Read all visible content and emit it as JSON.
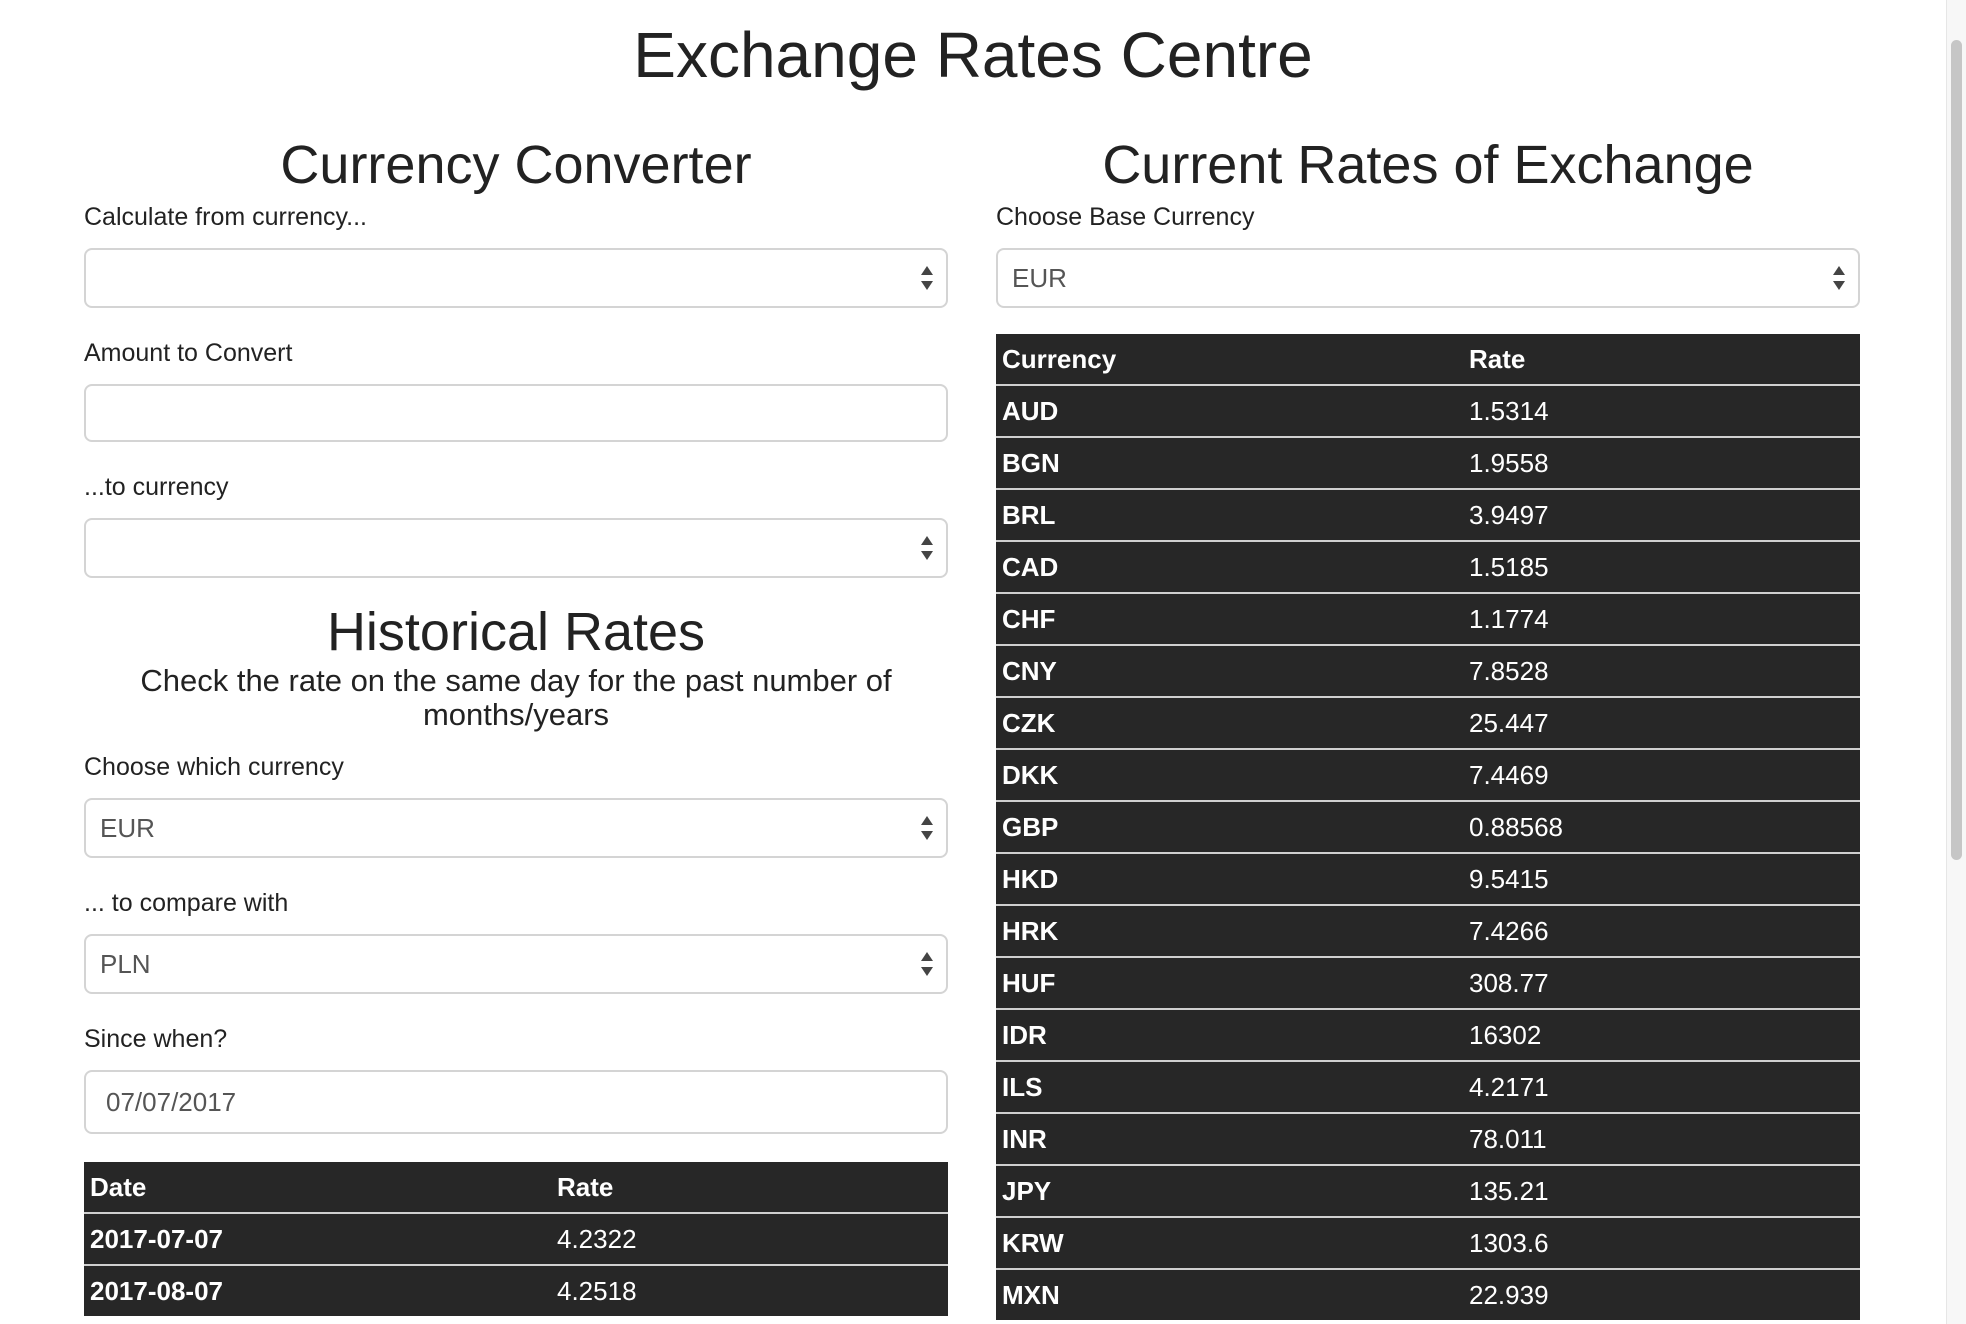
{
  "page": {
    "title": "Exchange Rates Centre"
  },
  "converter": {
    "title": "Currency Converter",
    "from_label": "Calculate from currency...",
    "from_value": "",
    "amount_label": "Amount to Convert",
    "amount_value": "",
    "to_label": "...to currency",
    "to_value": ""
  },
  "historical": {
    "title": "Historical Rates",
    "subtitle": "Check the rate on the same day for the past number of months/years",
    "currency_label": "Choose which currency",
    "currency_value": "EUR",
    "compare_label": "... to compare with",
    "compare_value": "PLN",
    "since_label": "Since when?",
    "since_value": "07/07/2017",
    "table": {
      "headers": [
        "Date",
        "Rate"
      ],
      "rows": [
        {
          "date": "2017-07-07",
          "rate": "4.2322"
        },
        {
          "date": "2017-08-07",
          "rate": "4.2518"
        }
      ]
    }
  },
  "current": {
    "title": "Current Rates of Exchange",
    "base_label": "Choose Base Currency",
    "base_value": "EUR",
    "table": {
      "headers": [
        "Currency",
        "Rate"
      ],
      "rows": [
        {
          "currency": "AUD",
          "rate": "1.5314"
        },
        {
          "currency": "BGN",
          "rate": "1.9558"
        },
        {
          "currency": "BRL",
          "rate": "3.9497"
        },
        {
          "currency": "CAD",
          "rate": "1.5185"
        },
        {
          "currency": "CHF",
          "rate": "1.1774"
        },
        {
          "currency": "CNY",
          "rate": "7.8528"
        },
        {
          "currency": "CZK",
          "rate": "25.447"
        },
        {
          "currency": "DKK",
          "rate": "7.4469"
        },
        {
          "currency": "GBP",
          "rate": "0.88568"
        },
        {
          "currency": "HKD",
          "rate": "9.5415"
        },
        {
          "currency": "HRK",
          "rate": "7.4266"
        },
        {
          "currency": "HUF",
          "rate": "308.77"
        },
        {
          "currency": "IDR",
          "rate": "16302"
        },
        {
          "currency": "ILS",
          "rate": "4.2171"
        },
        {
          "currency": "INR",
          "rate": "78.011"
        },
        {
          "currency": "JPY",
          "rate": "135.21"
        },
        {
          "currency": "KRW",
          "rate": "1303.6"
        },
        {
          "currency": "MXN",
          "rate": "22.939"
        }
      ]
    }
  },
  "icons": {
    "select": "up-down-chevron-icon"
  }
}
